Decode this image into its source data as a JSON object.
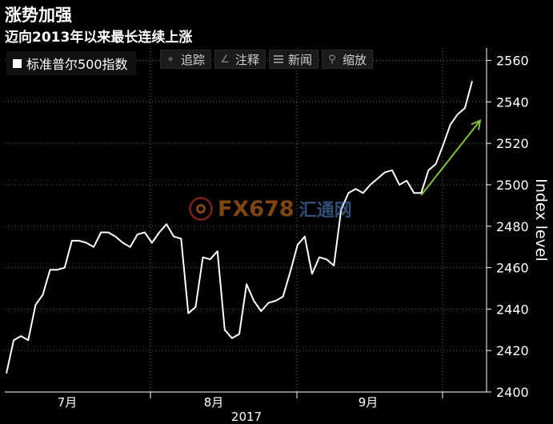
{
  "header": {
    "title": "涨势加强",
    "subtitle": "迈向2013年以来最长连续上涨"
  },
  "legend": {
    "label": "标准普尔500指数"
  },
  "toolbar": {
    "buttons": [
      {
        "label": "追踪",
        "icon": "crosshair-icon"
      },
      {
        "label": "注释",
        "icon": "pencil-icon"
      },
      {
        "label": "新闻",
        "icon": "news-icon"
      },
      {
        "label": "缩放",
        "icon": "magnifier-icon"
      }
    ]
  },
  "watermark": {
    "brand": "FX678",
    "cn": "汇通网"
  },
  "colors": {
    "background": "#000000",
    "line": "#ffffff",
    "arrow": "#7dc242",
    "grid": "#6a6a6a"
  },
  "chart_data": {
    "type": "line",
    "title": "涨势加强",
    "subtitle": "迈向2013年以来最长连续上涨",
    "ylabel": "Index level",
    "ylim": [
      2400,
      2566
    ],
    "yticks": [
      2400,
      2420,
      2440,
      2460,
      2480,
      2500,
      2520,
      2540,
      2560
    ],
    "xticks": [
      "7月",
      "8月",
      "9月"
    ],
    "x_year_label": "2017",
    "grid": true,
    "y_axis_side": "right",
    "legend_position": "top-left",
    "series": [
      {
        "name": "标准普尔500指数",
        "values": [
          2409,
          2425,
          2427,
          2425,
          2442,
          2447,
          2459,
          2459,
          2460,
          2473,
          2473,
          2472,
          2470,
          2477,
          2477,
          2475,
          2472,
          2470,
          2476,
          2477,
          2472,
          2477,
          2481,
          2475,
          2474,
          2438,
          2441,
          2465,
          2464,
          2468,
          2430,
          2426,
          2428,
          2452,
          2444,
          2439,
          2443,
          2444,
          2446,
          2458,
          2471,
          2475,
          2457,
          2465,
          2464,
          2461,
          2488,
          2496,
          2498,
          2496,
          2500,
          2503,
          2506,
          2507,
          2500,
          2502,
          2496,
          2496,
          2507,
          2510,
          2519,
          2529,
          2534,
          2537,
          2550
        ]
      }
    ],
    "annotations": [
      {
        "type": "trend-arrow",
        "from": [
          57,
          2495
        ],
        "to": [
          64,
          2531
        ]
      }
    ]
  }
}
